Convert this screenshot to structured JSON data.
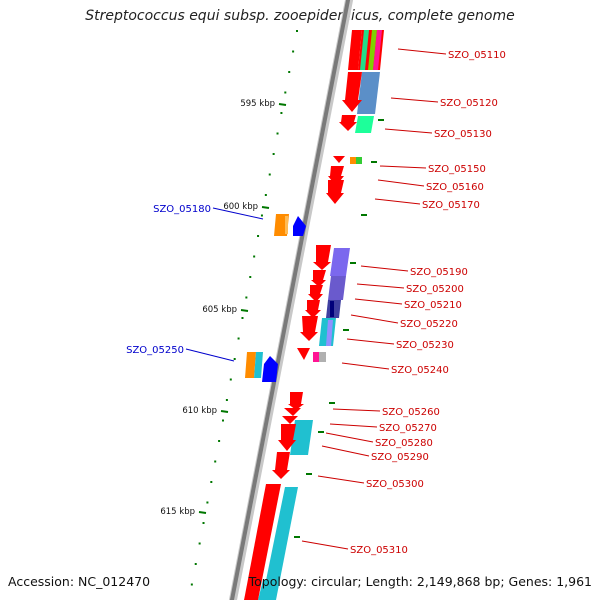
{
  "title": "Streptococcus equi subsp. zooepidemicus, complete genome",
  "footer": {
    "accession": "Accession: NC_012470",
    "topology": "Topology: circular; Length: 2,149,868 bp; Genes: 1,961"
  },
  "colors": {
    "forward_gene": "#ff0000",
    "backbone": "#808080",
    "tick": "#007700",
    "label_red": "#cc0000",
    "label_blue": "#0000cc"
  },
  "scale": {
    "labels": [
      "595 kbp",
      "600 kbp",
      "605 kbp",
      "610 kbp",
      "615 kbp"
    ]
  },
  "genes": [
    {
      "label": "SZO_05110",
      "color": "red"
    },
    {
      "label": "SZO_05120",
      "color": "red"
    },
    {
      "label": "SZO_05130",
      "color": "red"
    },
    {
      "label": "SZO_05150",
      "color": "red"
    },
    {
      "label": "SZO_05160",
      "color": "red"
    },
    {
      "label": "SZO_05170",
      "color": "red"
    },
    {
      "label": "SZO_05180",
      "color": "blue"
    },
    {
      "label": "SZO_05190",
      "color": "red"
    },
    {
      "label": "SZO_05200",
      "color": "red"
    },
    {
      "label": "SZO_05210",
      "color": "red"
    },
    {
      "label": "SZO_05220",
      "color": "red"
    },
    {
      "label": "SZO_05230",
      "color": "red"
    },
    {
      "label": "SZO_05240",
      "color": "red"
    },
    {
      "label": "SZO_05250",
      "color": "blue"
    },
    {
      "label": "SZO_05260",
      "color": "red"
    },
    {
      "label": "SZO_05270",
      "color": "red"
    },
    {
      "label": "SZO_05280",
      "color": "red"
    },
    {
      "label": "SZO_05290",
      "color": "red"
    },
    {
      "label": "SZO_05300",
      "color": "red"
    },
    {
      "label": "SZO_05310",
      "color": "red"
    }
  ]
}
